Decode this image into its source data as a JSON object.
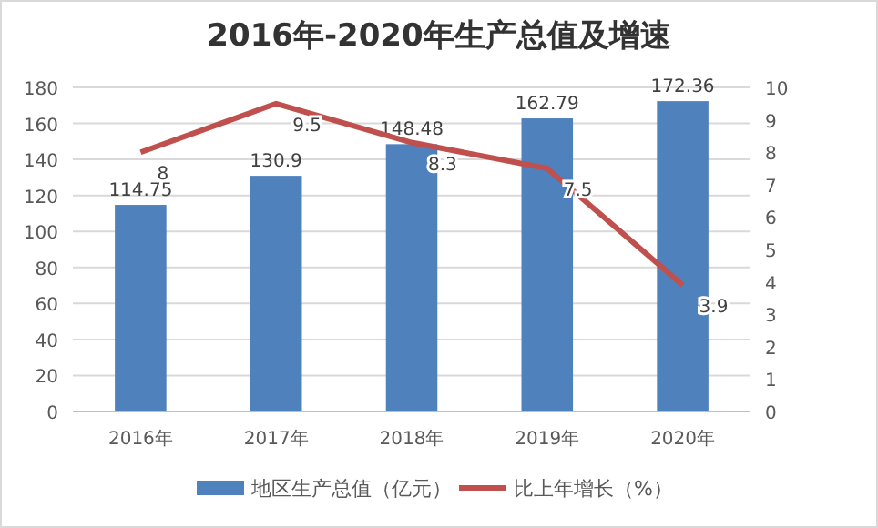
{
  "chart_data": {
    "type": "bar",
    "title": "2016年-2020年生产总值及增速",
    "categories": [
      "2016年",
      "2017年",
      "2018年",
      "2019年",
      "2020年"
    ],
    "series": [
      {
        "name": "地区生产总值（亿元）",
        "color": "#4f81bd",
        "values": [
          114.75,
          130.9,
          148.48,
          162.79,
          172.36
        ]
      },
      {
        "name": "比上年增长（%）",
        "type": "line",
        "axis": "y2",
        "color": "#c0504d",
        "values": [
          8,
          9.5,
          8.3,
          7.5,
          3.9
        ]
      }
    ],
    "ylim": [
      0,
      180
    ],
    "yticks": [
      0,
      20,
      40,
      60,
      80,
      100,
      120,
      140,
      160,
      180
    ],
    "y2lim": [
      0,
      10
    ],
    "y2ticks": [
      0,
      1,
      2,
      3,
      4,
      5,
      6,
      7,
      8,
      9,
      10
    ],
    "grid": "y",
    "legend": "bottom",
    "data_labels": true,
    "marker": "none",
    "line_style": "solid"
  }
}
